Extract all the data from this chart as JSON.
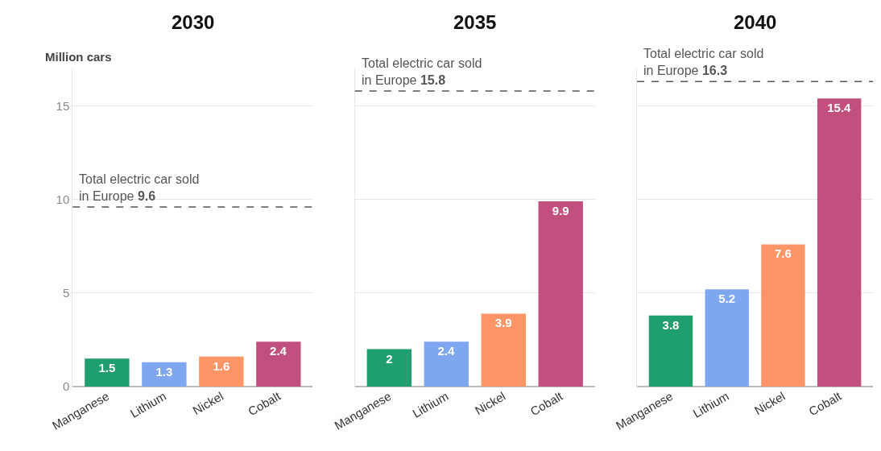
{
  "chart_data": [
    {
      "type": "bar",
      "title": "2030",
      "ylabel": "Million cars",
      "categories": [
        "Manganese",
        "Lithium",
        "Nickel",
        "Cobalt"
      ],
      "values": [
        1.5,
        1.3,
        1.6,
        2.4
      ],
      "colors": [
        "#1f9e6e",
        "#7fa7ef",
        "#fd9566",
        "#c2507f"
      ],
      "data_labels": true,
      "ylim": [
        0,
        17
      ],
      "yticks": [
        0,
        5,
        10,
        15
      ],
      "grid": "y",
      "ref_lines": [
        {
          "axis": "y",
          "value": 9.6,
          "label": "Total electric car sold\nin Europe 9.6",
          "line_style": "dashed",
          "color": "#555555"
        }
      ]
    },
    {
      "type": "bar",
      "title": "2035",
      "categories": [
        "Manganese",
        "Lithium",
        "Nickel",
        "Cobalt"
      ],
      "values": [
        2,
        2.4,
        3.9,
        9.9
      ],
      "colors": [
        "#1f9e6e",
        "#7fa7ef",
        "#fd9566",
        "#c2507f"
      ],
      "data_labels": true,
      "ylim": [
        0,
        17
      ],
      "yticks": [
        0,
        5,
        10,
        15
      ],
      "grid": "y",
      "tick_labels": "x",
      "ref_lines": [
        {
          "axis": "y",
          "value": 15.8,
          "label": "Total electric car sold\nin Europe 15.8",
          "line_style": "dashed",
          "color": "#555555"
        }
      ]
    },
    {
      "type": "bar",
      "title": "2040",
      "categories": [
        "Manganese",
        "Lithium",
        "Nickel",
        "Cobalt"
      ],
      "values": [
        3.8,
        5.2,
        7.6,
        15.4
      ],
      "colors": [
        "#1f9e6e",
        "#7fa7ef",
        "#fd9566",
        "#c2507f"
      ],
      "data_labels": true,
      "ylim": [
        0,
        17
      ],
      "yticks": [
        0,
        5,
        10,
        15
      ],
      "grid": "y",
      "tick_labels": "x",
      "ref_lines": [
        {
          "axis": "y",
          "value": 16.3,
          "label": "Total electric car sold\nin Europe 16.3",
          "line_style": "dashed",
          "color": "#555555"
        }
      ]
    }
  ]
}
